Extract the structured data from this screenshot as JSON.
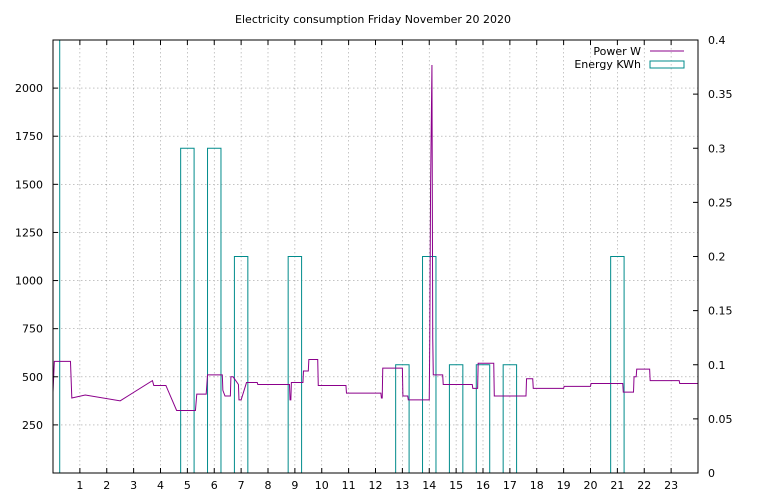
{
  "chart_data": {
    "type": "line",
    "title": "Electricity consumption Friday November 20 2020",
    "xlabel": "",
    "ylabel": "",
    "y2label": "",
    "xlim": [
      0,
      24
    ],
    "ylim": [
      0,
      2250
    ],
    "y2lim": [
      0,
      0.4
    ],
    "grid": true,
    "legend_position": "top-right",
    "x_ticks": [
      1,
      2,
      3,
      4,
      5,
      6,
      7,
      8,
      9,
      10,
      11,
      12,
      13,
      14,
      15,
      16,
      17,
      18,
      19,
      20,
      21,
      22,
      23
    ],
    "y_ticks": [
      250,
      500,
      750,
      1000,
      1250,
      1500,
      1750,
      2000
    ],
    "y2_ticks": [
      0,
      0.05,
      0.1,
      0.15,
      0.2,
      0.25,
      0.3,
      0.35,
      0.4
    ],
    "x_tick_labels": [
      "1",
      "2",
      "3",
      "4",
      "5",
      "6",
      "7",
      "8",
      "9",
      "10",
      "11",
      "12",
      "13",
      "14",
      "15",
      "16",
      "17",
      "18",
      "19",
      "20",
      "21",
      "22",
      "23"
    ],
    "y_tick_labels": [
      "250",
      "500",
      "750",
      "1000",
      "1250",
      "1500",
      "1750",
      "2000"
    ],
    "y2_tick_labels": [
      "0",
      "0.05",
      "0.1",
      "0.15",
      "0.2",
      "0.25",
      "0.3",
      "0.35",
      "0.4"
    ],
    "series": [
      {
        "name": "Power W",
        "axis": "y",
        "color": "#8b008b",
        "x": [
          0,
          0.05,
          0.65,
          0.7,
          1.2,
          2.5,
          3.7,
          3.75,
          4.2,
          4.6,
          4.65,
          5.3,
          5.35,
          5.7,
          5.75,
          6.3,
          6.32,
          6.4,
          6.6,
          6.62,
          6.7,
          6.9,
          6.92,
          7.0,
          7.2,
          7.6,
          7.62,
          8.8,
          8.82,
          8.85,
          8.87,
          9.3,
          9.32,
          9.5,
          9.52,
          9.85,
          9.87,
          10.9,
          10.92,
          12.2,
          12.22,
          12.25,
          12.27,
          13.0,
          13.02,
          13.2,
          13.22,
          14.0,
          14.02,
          14.05,
          14.1,
          14.13,
          14.15,
          14.5,
          14.52,
          15.6,
          15.62,
          15.8,
          15.82,
          16.4,
          16.42,
          17.6,
          17.62,
          17.85,
          17.87,
          19.0,
          19.02,
          20.0,
          20.02,
          21.2,
          21.22,
          21.6,
          21.62,
          21.7,
          21.72,
          22.2,
          22.22,
          23.3,
          23.32,
          24.0
        ],
        "y": [
          420,
          580,
          580,
          390,
          405,
          375,
          480,
          455,
          455,
          325,
          325,
          325,
          410,
          410,
          510,
          510,
          430,
          400,
          400,
          500,
          500,
          460,
          380,
          380,
          470,
          470,
          460,
          460,
          380,
          380,
          470,
          470,
          530,
          530,
          590,
          590,
          455,
          455,
          415,
          415,
          390,
          390,
          545,
          545,
          400,
          400,
          380,
          380,
          700,
          1500,
          2120,
          700,
          510,
          510,
          460,
          460,
          440,
          440,
          570,
          570,
          400,
          400,
          490,
          490,
          440,
          440,
          450,
          450,
          465,
          465,
          420,
          420,
          500,
          500,
          540,
          540,
          480,
          480,
          465,
          465
        ]
      },
      {
        "name": "Energy KWh",
        "axis": "y2",
        "color": "#008b8b",
        "bar_width": 0.5,
        "x": [
          0,
          5,
          6,
          7,
          9,
          13,
          14,
          15,
          16,
          17,
          21
        ],
        "y": [
          0.4,
          0.3,
          0.3,
          0.2,
          0.2,
          0.1,
          0.2,
          0.1,
          0.1,
          0.1,
          0.2
        ]
      }
    ]
  }
}
